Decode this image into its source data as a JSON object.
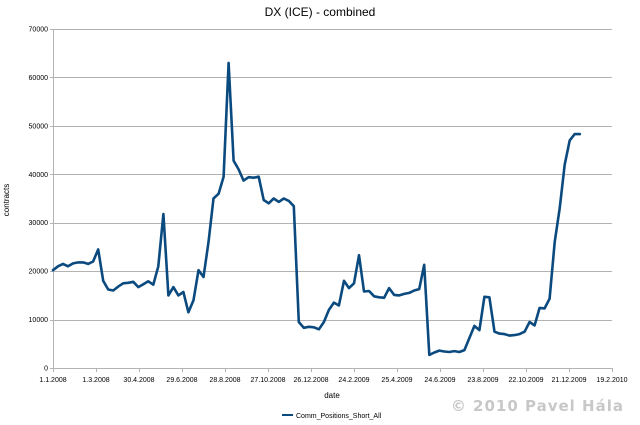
{
  "chart_data": {
    "type": "line",
    "title": "DX (ICE) - combined",
    "xlabel": "date",
    "ylabel": "contracts",
    "ylim": [
      0,
      70000
    ],
    "yticks": [
      0,
      10000,
      20000,
      30000,
      40000,
      50000,
      60000,
      70000
    ],
    "xlim": [
      "2008-01-01",
      "2010-02-19"
    ],
    "xticks": [
      {
        "label": "1.1.2008",
        "date": "2008-01-01"
      },
      {
        "label": "1.3.2008",
        "date": "2008-03-01"
      },
      {
        "label": "30.4.2008",
        "date": "2008-04-30"
      },
      {
        "label": "29.6.2008",
        "date": "2008-06-29"
      },
      {
        "label": "28.8.2008",
        "date": "2008-08-28"
      },
      {
        "label": "27.10.2008",
        "date": "2008-10-27"
      },
      {
        "label": "26.12.2008",
        "date": "2008-12-26"
      },
      {
        "label": "24.2.2009",
        "date": "2009-02-24"
      },
      {
        "label": "25.4.2009",
        "date": "2009-04-25"
      },
      {
        "label": "24.6.2009",
        "date": "2009-06-24"
      },
      {
        "label": "23.8.2009",
        "date": "2009-08-23"
      },
      {
        "label": "22.10.2009",
        "date": "2009-10-22"
      },
      {
        "label": "21.12.2009",
        "date": "2009-12-21"
      },
      {
        "label": "19.2.2010",
        "date": "2010-02-19"
      }
    ],
    "grid": "horizontal",
    "legend_position": "bottom",
    "series": [
      {
        "name": "Comm_Positions_Short_All",
        "color": "#0b4a7f",
        "x": [
          "2008-01-01",
          "2008-01-08",
          "2008-01-15",
          "2008-01-22",
          "2008-01-29",
          "2008-02-05",
          "2008-02-12",
          "2008-02-19",
          "2008-02-26",
          "2008-03-04",
          "2008-03-11",
          "2008-03-18",
          "2008-03-25",
          "2008-04-01",
          "2008-04-08",
          "2008-04-15",
          "2008-04-22",
          "2008-04-29",
          "2008-05-06",
          "2008-05-13",
          "2008-05-20",
          "2008-05-27",
          "2008-06-03",
          "2008-06-10",
          "2008-06-17",
          "2008-06-24",
          "2008-07-01",
          "2008-07-08",
          "2008-07-15",
          "2008-07-22",
          "2008-07-29",
          "2008-08-05",
          "2008-08-12",
          "2008-08-19",
          "2008-08-26",
          "2008-09-02",
          "2008-09-09",
          "2008-09-16",
          "2008-09-23",
          "2008-09-30",
          "2008-10-07",
          "2008-10-14",
          "2008-10-21",
          "2008-10-28",
          "2008-11-04",
          "2008-11-11",
          "2008-11-18",
          "2008-11-25",
          "2008-12-02",
          "2008-12-09",
          "2008-12-16",
          "2008-12-23",
          "2008-12-30",
          "2009-01-06",
          "2009-01-13",
          "2009-01-20",
          "2009-01-27",
          "2009-02-03",
          "2009-02-10",
          "2009-02-17",
          "2009-02-24",
          "2009-03-03",
          "2009-03-10",
          "2009-03-17",
          "2009-03-24",
          "2009-03-31",
          "2009-04-07",
          "2009-04-14",
          "2009-04-21",
          "2009-04-28",
          "2009-05-05",
          "2009-05-12",
          "2009-05-19",
          "2009-05-26",
          "2009-06-02",
          "2009-06-09",
          "2009-06-16",
          "2009-06-23",
          "2009-06-30",
          "2009-07-07",
          "2009-07-14",
          "2009-07-21",
          "2009-07-28",
          "2009-08-04",
          "2009-08-11",
          "2009-08-18",
          "2009-08-25",
          "2009-09-01",
          "2009-09-08",
          "2009-09-15",
          "2009-09-22",
          "2009-09-29",
          "2009-10-06",
          "2009-10-13",
          "2009-10-20",
          "2009-10-27",
          "2009-11-03",
          "2009-11-10",
          "2009-11-17",
          "2009-11-24",
          "2009-12-01",
          "2009-12-08",
          "2009-12-15",
          "2009-12-22",
          "2009-12-29",
          "2010-01-05"
        ],
        "y": [
          20200,
          21000,
          21500,
          21000,
          21600,
          21800,
          21800,
          21500,
          22000,
          24500,
          18000,
          16200,
          16000,
          16800,
          17500,
          17600,
          17800,
          16700,
          17300,
          17900,
          17200,
          21000,
          31800,
          15000,
          16700,
          15000,
          15700,
          11500,
          14000,
          20200,
          18800,
          26000,
          35000,
          36000,
          39500,
          63000,
          42800,
          41000,
          38700,
          39400,
          39300,
          39500,
          34700,
          34000,
          35000,
          34300,
          35000,
          34500,
          33400,
          9500,
          8300,
          8500,
          8400,
          8000,
          9500,
          12000,
          13500,
          12900,
          18000,
          16500,
          17500,
          23300,
          15800,
          15900,
          14800,
          14600,
          14500,
          16500,
          15100,
          15000,
          15300,
          15500,
          16000,
          16300,
          21300,
          2700,
          3200,
          3600,
          3400,
          3300,
          3500,
          3300,
          3700,
          6200,
          8700,
          7800,
          14700,
          14600,
          7500,
          7100,
          7000,
          6700,
          6800,
          7000,
          7500,
          9500,
          8800,
          12400,
          12300,
          14300,
          26000,
          33000,
          42000,
          47000,
          48300,
          48300
        ]
      }
    ]
  },
  "watermark": "© 2010  Pavel Hála"
}
